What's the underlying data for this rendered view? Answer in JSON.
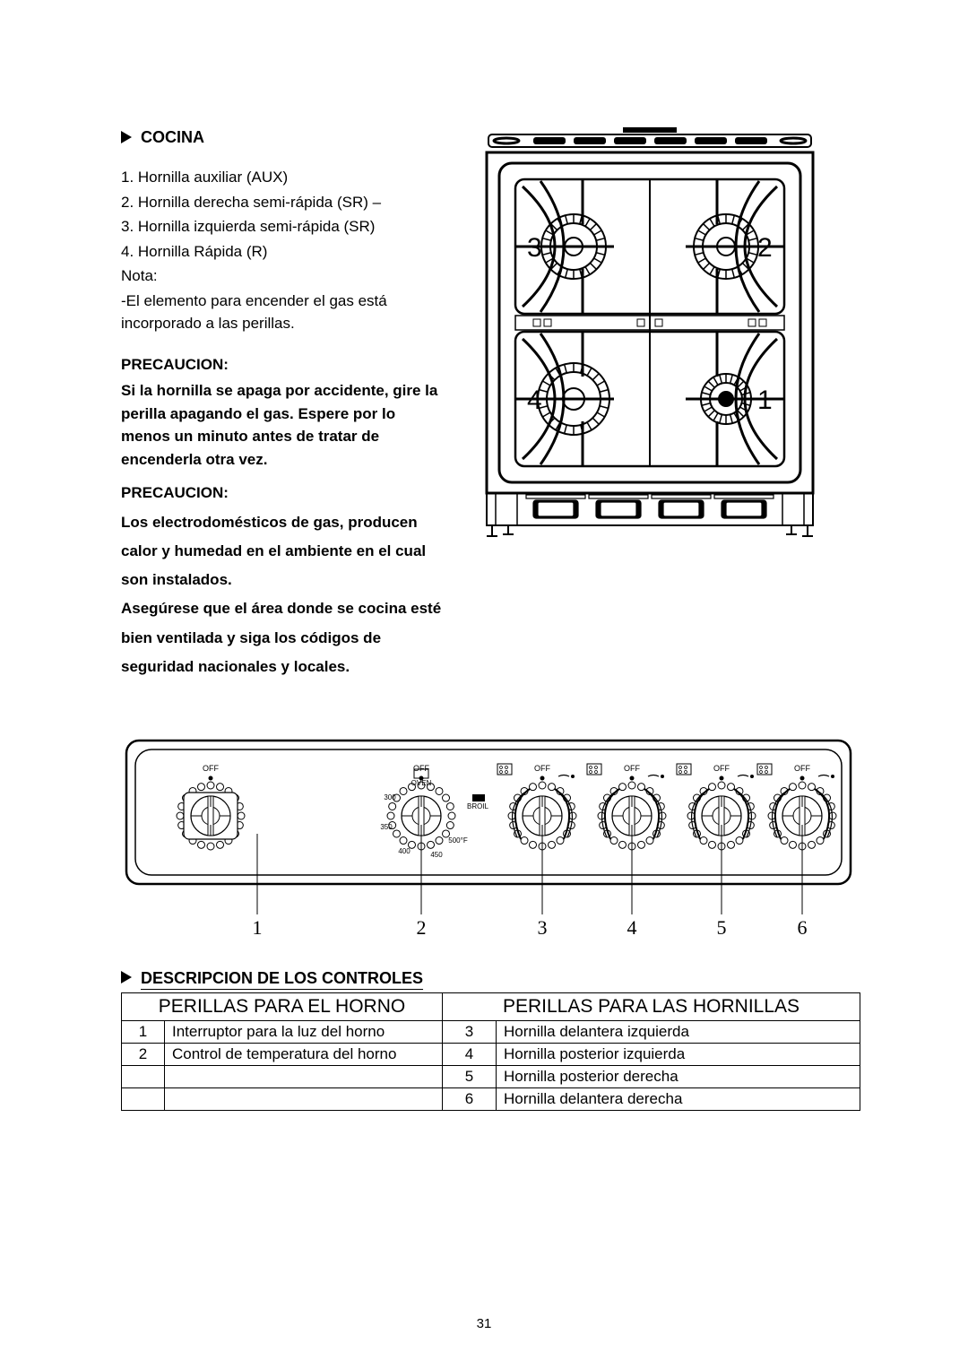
{
  "section1_title": "COCINA",
  "list": [
    "1. Hornilla auxiliar (AUX)",
    "2. Hornilla derecha semi-rápida (SR) –",
    "3. Hornilla izquierda semi-rápida (SR)",
    "4. Hornilla Rápida (R)"
  ],
  "nota_label": "Nota:",
  "nota_text": "-El elemento para encender el gas está incorporado a las perillas.",
  "precaucion_label": "PRECAUCION:",
  "precaucion1": "Si la hornilla se apaga por accidente, gire la perilla apagando el gas.  Espere por lo menos un minuto antes de tratar de encenderla otra vez.",
  "precaucion2_a": "Los electrodomésticos de gas, producen calor y humedad en el ambiente en el cual son instalados.",
  "precaucion2_b": "Asegúrese que el área donde se cocina esté bien ventilada y siga los códigos de seguridad nacionales y locales.",
  "stove_diagram": {
    "type": "diagram",
    "labels": [
      "1",
      "2",
      "3",
      "4"
    ],
    "stroke": "#000000",
    "bg": "#ffffff",
    "label_fontsize": 30
  },
  "panel_diagram": {
    "type": "diagram",
    "knob_labels": [
      "OFF",
      "OFF",
      "OFF",
      "OFF",
      "OFF",
      "OFF"
    ],
    "oven_text": [
      "OVEN",
      "300",
      "350",
      "400",
      "450",
      "500°F",
      "BROIL"
    ],
    "callouts": [
      "1",
      "2",
      "3",
      "4",
      "5",
      "6"
    ],
    "stroke": "#000000",
    "label_fontsize": 8
  },
  "section2_title": "DESCRIPCION DE LOS CONTROLES",
  "table": {
    "header_left": "PERILLAS PARA EL HORNO",
    "header_right": "PERILLAS PARA LAS HORNILLAS",
    "left_rows": [
      {
        "n": "1",
        "d": "Interruptor para la luz del horno"
      },
      {
        "n": "2",
        "d": "Control de temperatura del horno"
      },
      {
        "n": "",
        "d": ""
      },
      {
        "n": "",
        "d": ""
      }
    ],
    "right_rows": [
      {
        "n": "3",
        "d": "Hornilla delantera izquierda"
      },
      {
        "n": "4",
        "d": "Hornilla posterior izquierda"
      },
      {
        "n": "5",
        "d": "Hornilla posterior derecha"
      },
      {
        "n": "6",
        "d": "Hornilla delantera derecha"
      }
    ]
  },
  "page_number": "31"
}
